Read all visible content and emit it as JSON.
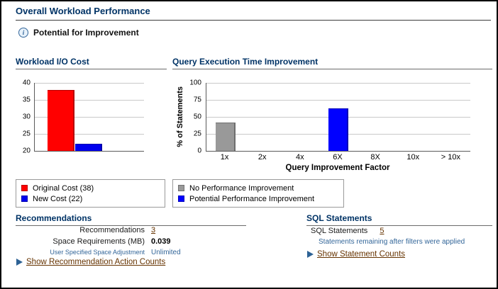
{
  "page": {
    "title": "Overall Workload Performance",
    "improvement_note": "Potential for Improvement"
  },
  "colors": {
    "header": "#003366",
    "link": "#663300",
    "note": "#336699",
    "original_cost": "#ff0000",
    "new_cost": "#0000ee",
    "no_improvement": "#999999",
    "potential_improvement": "#0000ff"
  },
  "chart_data": [
    {
      "type": "bar",
      "title": "Workload I/O Cost",
      "categories": [
        "Original Cost",
        "New Cost"
      ],
      "values": [
        38,
        22
      ],
      "colors": [
        "#ff0000",
        "#0000ee"
      ],
      "ylim": [
        20,
        40
      ],
      "yticks": [
        40,
        35,
        30,
        25,
        20
      ],
      "grid": true,
      "legend_position": "below",
      "legend": [
        {
          "label": "Original Cost (38)",
          "color": "#ff0000"
        },
        {
          "label": "New Cost (22)",
          "color": "#0000ee"
        }
      ]
    },
    {
      "type": "bar",
      "title": "Query Execution Time Improvement",
      "categories": [
        "1x",
        "2x",
        "4x",
        "6X",
        "8X",
        "10x",
        "> 10x"
      ],
      "series": [
        {
          "name": "No Performance Improvement",
          "color": "#999999",
          "values": [
            42,
            0,
            0,
            0,
            0,
            0,
            0
          ]
        },
        {
          "name": "Potential Performance Improvement",
          "color": "#0000ff",
          "values": [
            0,
            0,
            0,
            63,
            0,
            0,
            0
          ]
        }
      ],
      "xlabel": "Query Improvement Factor",
      "ylabel": "% of Statements",
      "ylim": [
        0,
        100
      ],
      "yticks": [
        100,
        75,
        50,
        25,
        0
      ],
      "grid": true,
      "legend_position": "below",
      "legend": [
        {
          "label": "No Performance Improvement",
          "color": "#999999"
        },
        {
          "label": "Potential Performance Improvement",
          "color": "#0000ff"
        }
      ]
    }
  ],
  "recommendations": {
    "title": "Recommendations",
    "rows": [
      {
        "label": "Recommendations",
        "value": "3"
      },
      {
        "label": "Space Requirements (MB)",
        "value": "0.039"
      },
      {
        "label": "User Specified Space Adjustment",
        "value": "Unlimited"
      }
    ],
    "show_link": "Show Recommendation Action Counts"
  },
  "sql": {
    "title": "SQL Statements",
    "label": "SQL Statements",
    "count": "5",
    "note": "Statements remaining after filters were applied",
    "show_link": "Show Statement Counts"
  }
}
